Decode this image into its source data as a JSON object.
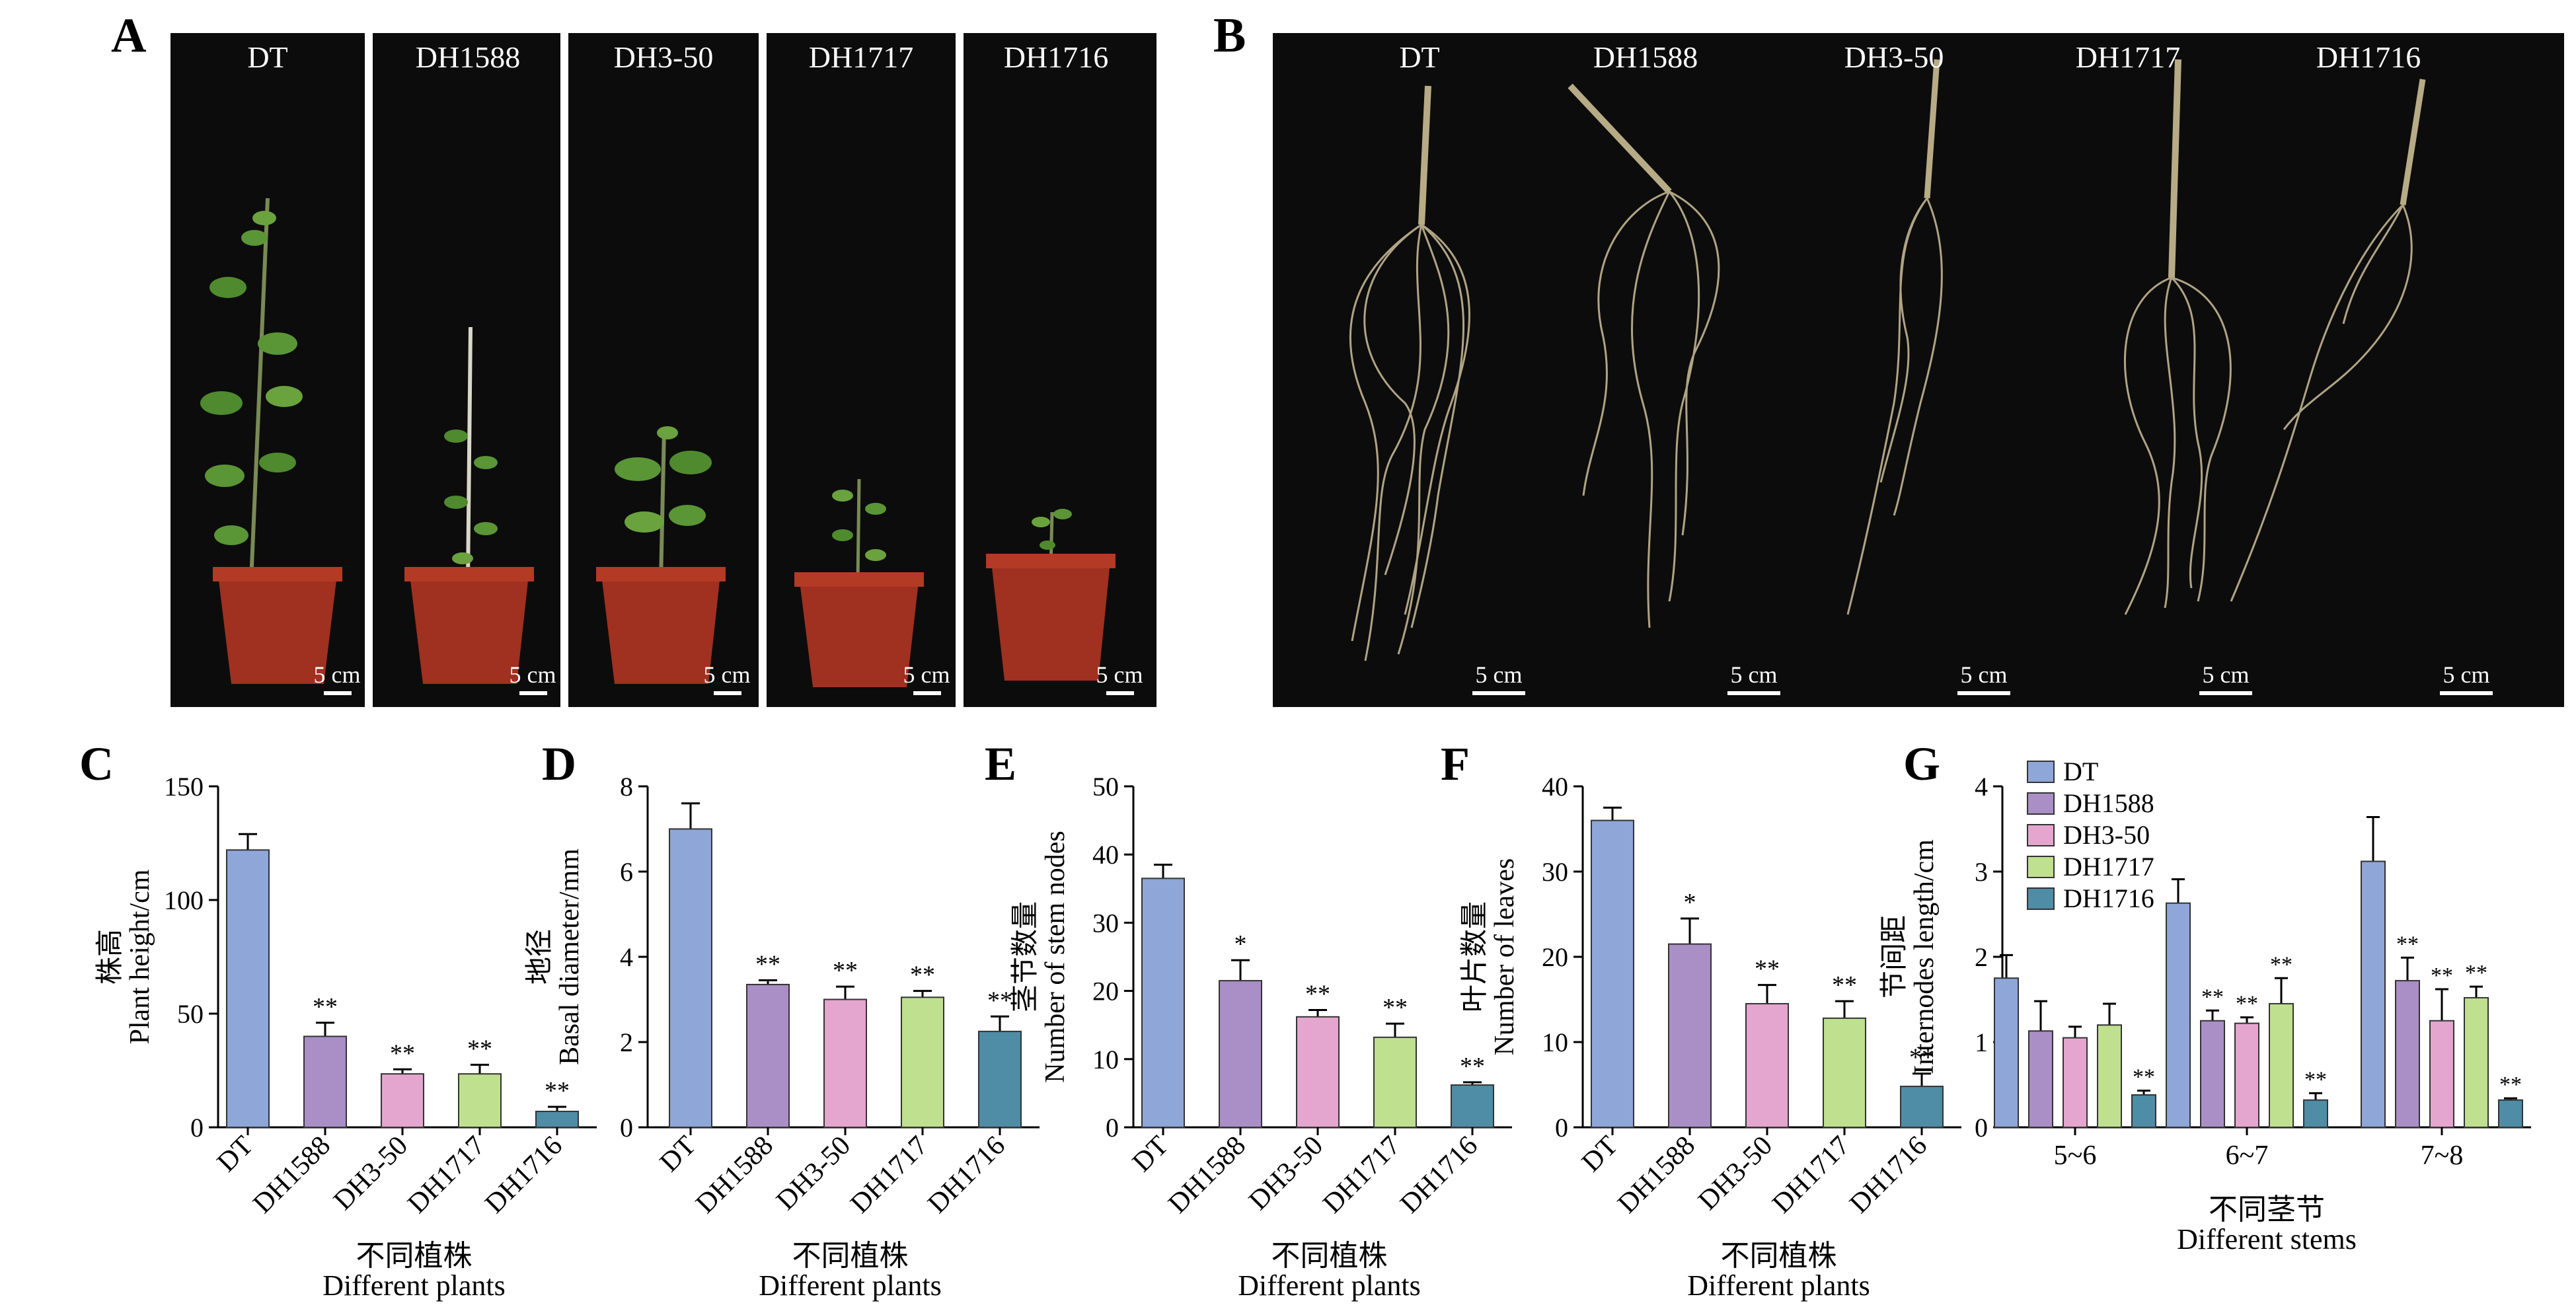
{
  "panel_a": {
    "letter": "A",
    "labels": [
      "DT",
      "DH1588",
      "DH3-50",
      "DH1717",
      "DH1716"
    ],
    "scale": "5 cm"
  },
  "panel_b": {
    "letter": "B",
    "labels": [
      "DT",
      "DH1588",
      "DH3-50",
      "DH1717",
      "DH1716"
    ],
    "scale": "5 cm"
  },
  "colors": {
    "DT": "#8ea6d8",
    "DH1588": "#a98fc6",
    "DH3-50": "#e4a6cf",
    "DH1717": "#bfe08e",
    "DH1716": "#4f8ca5",
    "photo_bg": "#0c0c0c"
  },
  "chart_data": [
    {
      "letter": "C",
      "type": "bar",
      "categories": [
        "DT",
        "DH1588",
        "DH3-50",
        "DH1717",
        "DH1716"
      ],
      "values": [
        122,
        40,
        23.5,
        23.5,
        7
      ],
      "errors": [
        7,
        6,
        2,
        4,
        2
      ],
      "significance": [
        "",
        "**",
        "**",
        "**",
        "**"
      ],
      "ylabel_cn": "株高",
      "ylabel_en": "Plant height/cm",
      "xlabel_cn": "不同植株",
      "xlabel_en": "Different plants",
      "ylim": [
        0,
        150
      ],
      "yticks": [
        0,
        50,
        100,
        150
      ]
    },
    {
      "letter": "D",
      "type": "bar",
      "categories": [
        "DT",
        "DH1588",
        "DH3-50",
        "DH1717",
        "DH1716"
      ],
      "values": [
        7.0,
        3.35,
        3.0,
        3.05,
        2.25
      ],
      "errors": [
        0.6,
        0.1,
        0.3,
        0.15,
        0.35
      ],
      "significance": [
        "",
        "**",
        "**",
        "**",
        "**"
      ],
      "ylabel_cn": "地径",
      "ylabel_en": "Basal diameter/mm",
      "xlabel_cn": "不同植株",
      "xlabel_en": "Different plants",
      "ylim": [
        0,
        8
      ],
      "yticks": [
        0,
        2,
        4,
        6,
        8
      ]
    },
    {
      "letter": "E",
      "type": "bar",
      "categories": [
        "DT",
        "DH1588",
        "DH3-50",
        "DH1717",
        "DH1716"
      ],
      "values": [
        36.5,
        21.5,
        16.2,
        13.2,
        6.2
      ],
      "errors": [
        2.0,
        3.0,
        1.0,
        2.0,
        0.4
      ],
      "significance": [
        "",
        "*",
        "**",
        "**",
        "**"
      ],
      "ylabel_cn": "茎节数量",
      "ylabel_en": "Number of stem nodes",
      "xlabel_cn": "不同植株",
      "xlabel_en": "Different plants",
      "ylim": [
        0,
        50
      ],
      "yticks": [
        0,
        10,
        20,
        30,
        40,
        50
      ]
    },
    {
      "letter": "F",
      "type": "bar",
      "categories": [
        "DT",
        "DH1588",
        "DH3-50",
        "DH1717",
        "DH1716"
      ],
      "values": [
        36,
        21.5,
        14.5,
        12.8,
        4.8
      ],
      "errors": [
        1.5,
        3.0,
        2.2,
        2.0,
        1.5
      ],
      "significance": [
        "",
        "*",
        "**",
        "**",
        "**"
      ],
      "ylabel_cn": "叶片数量",
      "ylabel_en": "Number of leaves",
      "xlabel_cn": "不同植株",
      "xlabel_en": "Different plants",
      "ylim": [
        0,
        40
      ],
      "yticks": [
        0,
        10,
        20,
        30,
        40
      ]
    },
    {
      "letter": "G",
      "type": "bar",
      "categories": [
        "5~6",
        "6~7",
        "7~8"
      ],
      "series": [
        {
          "name": "DT",
          "values": [
            1.75,
            2.63,
            3.12
          ],
          "errors": [
            0.27,
            0.28,
            0.52
          ],
          "significance": [
            "",
            "",
            ""
          ]
        },
        {
          "name": "DH1588",
          "values": [
            1.13,
            1.25,
            1.72
          ],
          "errors": [
            0.35,
            0.12,
            0.27
          ],
          "significance": [
            "",
            "**",
            "**"
          ]
        },
        {
          "name": "DH3-50",
          "values": [
            1.05,
            1.22,
            1.25
          ],
          "errors": [
            0.13,
            0.07,
            0.37
          ],
          "significance": [
            "",
            "**",
            "**"
          ]
        },
        {
          "name": "DH1717",
          "values": [
            1.2,
            1.45,
            1.52
          ],
          "errors": [
            0.25,
            0.3,
            0.13
          ],
          "significance": [
            "",
            "**",
            "**"
          ]
        },
        {
          "name": "DH1716",
          "values": [
            0.38,
            0.32,
            0.32
          ],
          "errors": [
            0.05,
            0.08,
            0.02
          ],
          "significance": [
            "**",
            "**",
            "**"
          ]
        }
      ],
      "ylabel_cn": "节间距",
      "ylabel_en": "Internodes length/cm",
      "xlabel_cn": "不同茎节",
      "xlabel_en": "Different stems",
      "ylim": [
        0,
        4
      ],
      "yticks": [
        0,
        1,
        2,
        3,
        4
      ],
      "legend": "top-left"
    }
  ]
}
